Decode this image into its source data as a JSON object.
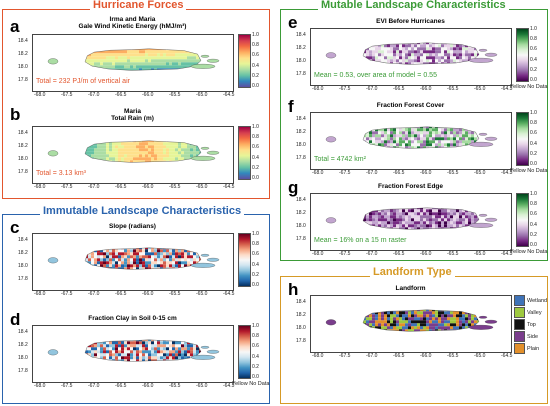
{
  "sections": {
    "hurricane": {
      "title": "Hurricane Forces",
      "color": "#e2562e"
    },
    "immutable": {
      "title": "Immutable Landscape Characteristics",
      "color": "#2a63ad"
    },
    "mutable": {
      "title": "Mutable Landscape Characteristics",
      "color": "#3b9b37"
    },
    "landform": {
      "title": "Landform Type",
      "color": "#d69a26"
    }
  },
  "axes": {
    "y_ticks": [
      "18.4",
      "18.2",
      "18.0",
      "17.8"
    ],
    "x_ticks": [
      "-68.0",
      "-67.5",
      "-67.0",
      "-66.5",
      "-66.0",
      "-65.5",
      "-65.0",
      "-64.5"
    ]
  },
  "colorbar_ticks": [
    "1.0",
    "0.8",
    "0.6",
    "0.4",
    "0.2",
    "0.0"
  ],
  "panels": {
    "a": {
      "letter": "a",
      "title_line1": "Irma and Maria",
      "title_line2": "Gale Wind Kinetic Energy (hMJ/m³)",
      "annotation": "Total = 232 PJ/m of vertical air"
    },
    "b": {
      "letter": "b",
      "title_line1": "Maria",
      "title_line2": "Total Rain (m)",
      "annotation": "Total = 3.13 km³"
    },
    "c": {
      "letter": "c",
      "title_line1": "Slope (radians)",
      "annotation": ""
    },
    "d": {
      "letter": "d",
      "title_line1": "Fraction Clay in Soil 0-15 cm",
      "nodata": "Yellow No Data"
    },
    "e": {
      "letter": "e",
      "title_line1": "EVI Before Hurricanes",
      "annotation": "Mean = 0.53, over area of model = 0.55",
      "nodata": "Yellow No Data"
    },
    "f": {
      "letter": "f",
      "title_line1": "Fraction Forest Cover",
      "annotation": "Total = 4742 km²",
      "nodata": "Yellow No Data"
    },
    "g": {
      "letter": "g",
      "title_line1": "Fraction Forest Edge",
      "annotation": "Mean = 16% on a 15 m raster",
      "nodata": "Yellow No Data"
    },
    "h": {
      "letter": "h",
      "title_line1": "Landform"
    }
  },
  "landform_legend": [
    {
      "label": "Wetland",
      "color": "#3f73b8"
    },
    {
      "label": "Valley",
      "color": "#9ec93f"
    },
    {
      "label": "Top",
      "color": "#111111"
    },
    {
      "label": "Side",
      "color": "#7a3d8c"
    },
    {
      "label": "Plain",
      "color": "#e3902b"
    }
  ],
  "colormaps": {
    "spectral": [
      "#9e0142",
      "#d53e4f",
      "#f46d43",
      "#fdae61",
      "#fee08b",
      "#e6f598",
      "#abdda4",
      "#66c2a5",
      "#3288bd",
      "#5e4fa2"
    ],
    "redblue": [
      "#67001f",
      "#b2182b",
      "#d6604d",
      "#f4a582",
      "#fddbc7",
      "#f7f7f7",
      "#d1e5f0",
      "#92c5de",
      "#4393c3",
      "#2166ac",
      "#053061"
    ],
    "greenpurple": [
      "#00441b",
      "#1b7837",
      "#5aae61",
      "#a6dba0",
      "#d9f0d3",
      "#f7f7f7",
      "#e7d4e8",
      "#c2a5cf",
      "#9970ab",
      "#762a83",
      "#40004b"
    ]
  }
}
